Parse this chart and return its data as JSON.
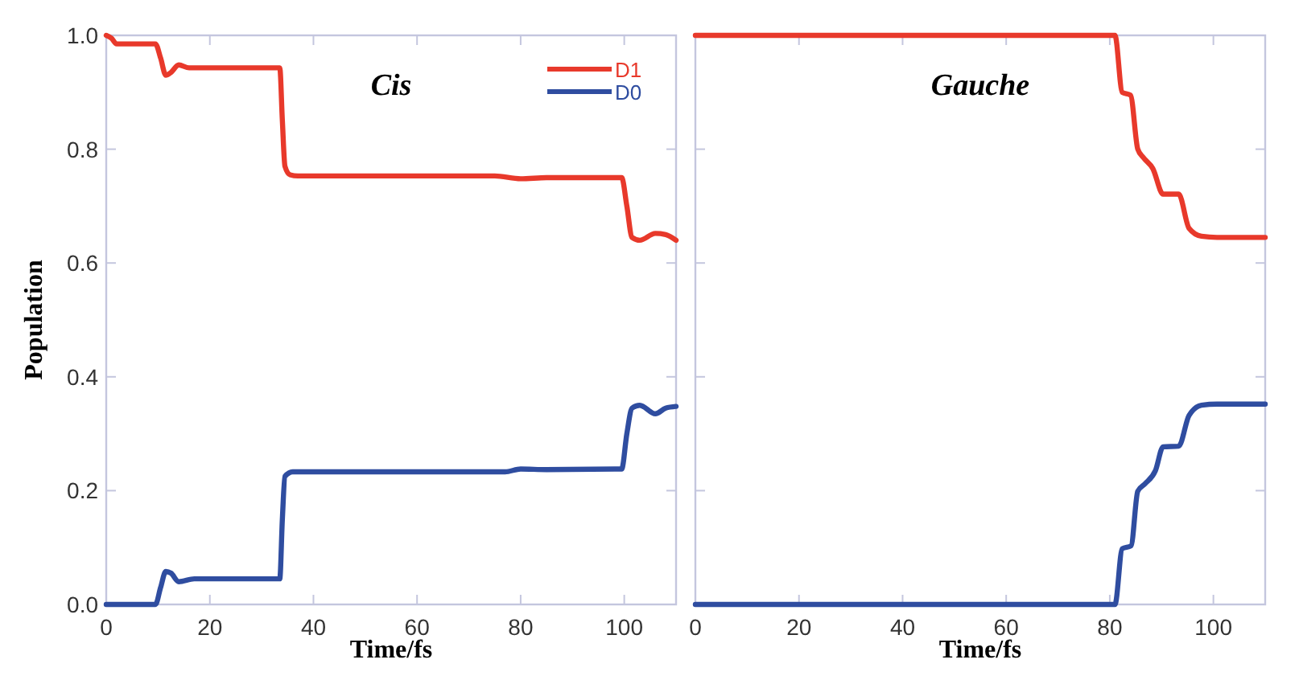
{
  "chart_data": [
    {
      "type": "line",
      "title": "Cis",
      "xlabel": "Time/fs",
      "ylabel": "Population",
      "xlim": [
        0,
        110
      ],
      "ylim": [
        0,
        1
      ],
      "xticks": [
        0,
        20,
        40,
        60,
        80,
        100
      ],
      "yticks": [
        {
          "value": 0,
          "label": "0.0"
        },
        {
          "value": 0.2,
          "label": "0.2"
        },
        {
          "value": 0.4,
          "label": "0.4"
        },
        {
          "value": 0.6,
          "label": "0.6"
        },
        {
          "value": 0.8,
          "label": "0.8"
        },
        {
          "value": 1,
          "label": "1.0"
        }
      ],
      "grid": false,
      "legend": "top right",
      "series": [
        {
          "name": "D1",
          "color": "#e8392b",
          "x": [
            0,
            1,
            2,
            9.5,
            10.5,
            11.5,
            12.5,
            14,
            16,
            33.5,
            34,
            34.5,
            35.5,
            37,
            75,
            80,
            85,
            99.5,
            100.5,
            101.5,
            103,
            106,
            108,
            110
          ],
          "values": [
            1.0,
            0.995,
            0.985,
            0.985,
            0.96,
            0.93,
            0.935,
            0.948,
            0.943,
            0.943,
            0.85,
            0.77,
            0.755,
            0.753,
            0.753,
            0.748,
            0.75,
            0.75,
            0.7,
            0.645,
            0.64,
            0.652,
            0.65,
            0.64
          ]
        },
        {
          "name": "D0",
          "color": "#2f4da0",
          "x": [
            0,
            9.5,
            10.5,
            11.5,
            12.5,
            14,
            17,
            33.5,
            34,
            34.5,
            36,
            77,
            80,
            85,
            99.5,
            100.5,
            101.5,
            103,
            106,
            108,
            110
          ],
          "values": [
            0,
            0,
            0.03,
            0.058,
            0.055,
            0.04,
            0.045,
            0.045,
            0.15,
            0.225,
            0.233,
            0.233,
            0.238,
            0.237,
            0.238,
            0.3,
            0.345,
            0.35,
            0.335,
            0.345,
            0.348
          ]
        }
      ]
    },
    {
      "type": "line",
      "title": "Gauche",
      "xlabel": "Time/fs",
      "xlim": [
        0,
        110
      ],
      "ylim": [
        0,
        1
      ],
      "xticks": [
        0,
        20,
        40,
        60,
        80,
        100
      ],
      "yticks": [
        0,
        0.2,
        0.4,
        0.6,
        0.8,
        1
      ],
      "tick_labels": "x",
      "grid": false,
      "series": [
        {
          "color": "#e8392b",
          "x": [
            0,
            81,
            82.4,
            84,
            85.4,
            86.5,
            88.3,
            90.3,
            93.3,
            95.3,
            97.7,
            100.7,
            110
          ],
          "values": [
            1,
            1,
            0.9,
            0.895,
            0.8,
            0.785,
            0.766,
            0.721,
            0.721,
            0.661,
            0.647,
            0.645,
            0.645
          ]
        },
        {
          "color": "#2f4da0",
          "x": [
            0,
            81,
            82.4,
            84.1,
            85.4,
            86.8,
            88.8,
            90.3,
            93.3,
            95.3,
            97.7,
            100.7,
            110
          ],
          "values": [
            0,
            0,
            0.098,
            0.103,
            0.199,
            0.212,
            0.235,
            0.277,
            0.278,
            0.332,
            0.35,
            0.352,
            0.352
          ]
        }
      ]
    }
  ]
}
